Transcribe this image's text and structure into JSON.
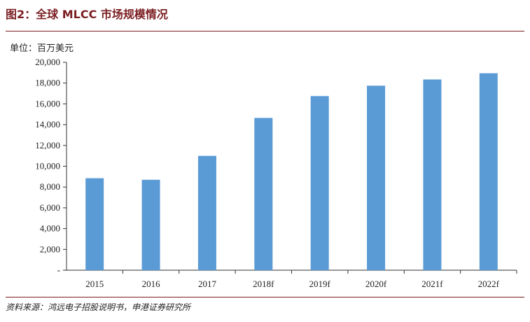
{
  "figure": {
    "title": "图2：全球 MLCC 市场规模情况",
    "unit_label": "单位：百万美元",
    "source": "资料来源：鸿远电子招股说明书，申港证券研究所"
  },
  "chart_data": {
    "type": "bar",
    "categories": [
      "2015",
      "2016",
      "2017",
      "2018f",
      "2019f",
      "2020f",
      "2021f",
      "2022f"
    ],
    "values": [
      8850,
      8700,
      11000,
      14650,
      16750,
      17750,
      18350,
      18950
    ],
    "ylim": [
      0,
      20000
    ],
    "yticks": [
      0,
      2000,
      4000,
      6000,
      8000,
      10000,
      12000,
      14000,
      16000,
      18000,
      20000
    ],
    "ytick_labels": [
      "-",
      "2,000",
      "4,000",
      "6,000",
      "8,000",
      "10,000",
      "12,000",
      "14,000",
      "16,000",
      "18,000",
      "20,000"
    ],
    "bar_color": "#5b9bd5",
    "grid": false,
    "legend": "none"
  }
}
